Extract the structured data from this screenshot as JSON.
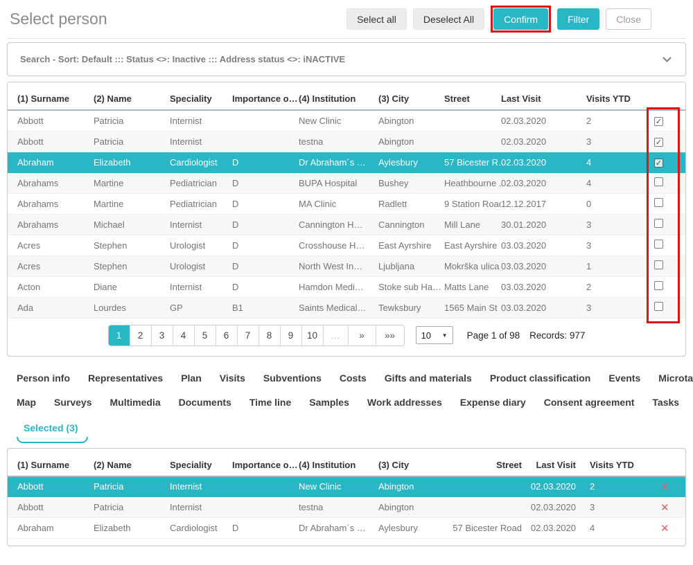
{
  "header": {
    "title": "Select person",
    "buttons": {
      "select_all": "Select all",
      "deselect_all": "Deselect All",
      "confirm": "Confirm",
      "filter": "Filter",
      "close": "Close"
    }
  },
  "filter_bar": {
    "summary": "Search - Sort: Default ::: Status <>: Inactive ::: Address status <>: iNACTIVE"
  },
  "people_table": {
    "columns": [
      "(1) Surname",
      "(2) Name",
      "Speciality",
      "Importance o…",
      "(4) Institution",
      "(3) City",
      "Street",
      "Last Visit",
      "Visits YTD"
    ],
    "check_glyph": "✓",
    "rows": [
      {
        "surname": "Abbott",
        "name": "Patricia",
        "speciality": "Internist",
        "importance": "",
        "institution": "New Clinic",
        "city": "Abington",
        "street": "",
        "last_visit": "02.03.2020",
        "visits_ytd": "2",
        "checked": true,
        "selected": false
      },
      {
        "surname": "Abbott",
        "name": "Patricia",
        "speciality": "Internist",
        "importance": "",
        "institution": "testna",
        "city": "Abington",
        "street": "",
        "last_visit": "02.03.2020",
        "visits_ytd": "3",
        "checked": true,
        "selected": false
      },
      {
        "surname": "Abraham",
        "name": "Elizabeth",
        "speciality": "Cardiologist",
        "importance": "D",
        "institution": "Dr Abraham´s …",
        "city": "Aylesbury",
        "street": "57 Bicester R…",
        "last_visit": "02.03.2020",
        "visits_ytd": "4",
        "checked": true,
        "selected": true
      },
      {
        "surname": "Abrahams",
        "name": "Martine",
        "speciality": "Pediatrician",
        "importance": "D",
        "institution": "BUPA Hospital",
        "city": "Bushey",
        "street": "Heathbourne …",
        "last_visit": "02.03.2020",
        "visits_ytd": "4",
        "checked": false,
        "selected": false
      },
      {
        "surname": "Abrahams",
        "name": "Martine",
        "speciality": "Pediatrician",
        "importance": "D",
        "institution": "MA Clinic",
        "city": "Radlett",
        "street": "9 Station Road",
        "last_visit": "12.12.2017",
        "visits_ytd": "0",
        "checked": false,
        "selected": false
      },
      {
        "surname": "Abrahams",
        "name": "Michael",
        "speciality": "Internist",
        "importance": "D",
        "institution": "Cannington H…",
        "city": "Cannington",
        "street": "Mill Lane",
        "last_visit": "30.01.2020",
        "visits_ytd": "3",
        "checked": false,
        "selected": false
      },
      {
        "surname": "Acres",
        "name": "Stephen",
        "speciality": "Urologist",
        "importance": "D",
        "institution": "Crosshouse H…",
        "city": "East Ayrshire",
        "street": "East Ayrshire …",
        "last_visit": "03.03.2020",
        "visits_ytd": "3",
        "checked": false,
        "selected": false
      },
      {
        "surname": "Acres",
        "name": "Stephen",
        "speciality": "Urologist",
        "importance": "D",
        "institution": "North West In…",
        "city": "Ljubljana",
        "street": "Mokrška ulica",
        "last_visit": "03.03.2020",
        "visits_ytd": "1",
        "checked": false,
        "selected": false
      },
      {
        "surname": "Acton",
        "name": "Diane",
        "speciality": "Internist",
        "importance": "D",
        "institution": "Hamdon Medi…",
        "city": "Stoke sub Ha…",
        "street": "Matts Lane",
        "last_visit": "03.03.2020",
        "visits_ytd": "2",
        "checked": false,
        "selected": false
      },
      {
        "surname": "Ada",
        "name": "Lourdes",
        "speciality": "GP",
        "importance": "B1",
        "institution": "Saints Medical…",
        "city": "Tewksbury",
        "street": "1565 Main St …",
        "last_visit": "03.03.2020",
        "visits_ytd": "3",
        "checked": false,
        "selected": false
      }
    ]
  },
  "pagination": {
    "pages": [
      "1",
      "2",
      "3",
      "4",
      "5",
      "6",
      "7",
      "8",
      "9",
      "10"
    ],
    "active_page": "1",
    "ellipsis": "…",
    "next_label": "»",
    "last_label": "»»",
    "page_size": "10",
    "dropdown_icon": "▼",
    "page_info": "Page 1 of 98",
    "records_info": "Records: 977"
  },
  "tabs": {
    "row1": [
      "Person info",
      "Representatives",
      "Plan",
      "Visits",
      "Subventions",
      "Costs",
      "Gifts and materials",
      "Product classification",
      "Events",
      "Microtargeting"
    ],
    "row2": [
      "Map",
      "Surveys",
      "Multimedia",
      "Documents",
      "Time line",
      "Samples",
      "Work addresses",
      "Expense diary",
      "Consent agreement",
      "Tasks"
    ]
  },
  "selected_tab": {
    "label": "Selected (3)"
  },
  "selected_table": {
    "columns": [
      "(1) Surname",
      "(2) Name",
      "Speciality",
      "Importance o…",
      "(4) Institution",
      "(3) City",
      "Street",
      "Last Visit",
      "Visits YTD"
    ],
    "remove_icon": "✕",
    "rows": [
      {
        "surname": "Abbott",
        "name": "Patricia",
        "speciality": "Internist",
        "importance": "",
        "institution": "New Clinic",
        "city": "Abington",
        "street": "",
        "last_visit": "02.03.2020",
        "visits_ytd": "2",
        "selected": true
      },
      {
        "surname": "Abbott",
        "name": "Patricia",
        "speciality": "Internist",
        "importance": "",
        "institution": "testna",
        "city": "Abington",
        "street": "",
        "last_visit": "02.03.2020",
        "visits_ytd": "3",
        "selected": false
      },
      {
        "surname": "Abraham",
        "name": "Elizabeth",
        "speciality": "Cardiologist",
        "importance": "D",
        "institution": "Dr Abraham´s …",
        "city": "Aylesbury",
        "street": "57 Bicester Road",
        "last_visit": "02.03.2020",
        "visits_ytd": "4",
        "selected": false
      }
    ]
  },
  "colors": {
    "accent": "#29b7c6",
    "annotation_red": "#e01212",
    "remove_red": "#e25f5f"
  }
}
